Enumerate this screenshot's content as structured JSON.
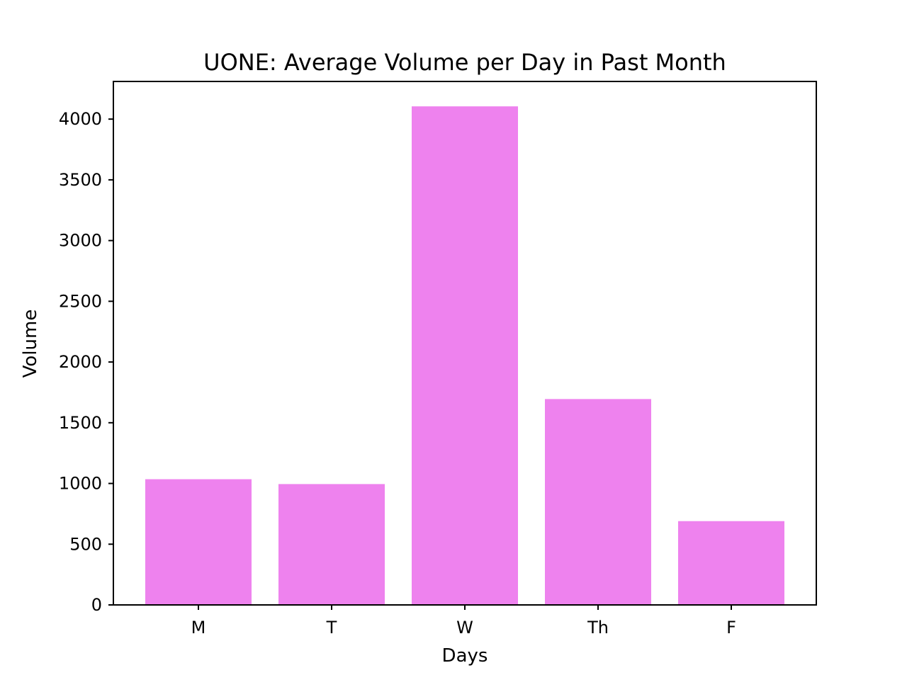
{
  "chart_data": {
    "type": "bar",
    "title": "UONE: Average Volume per Day in Past Month",
    "xlabel": "Days",
    "ylabel": "Volume",
    "categories": [
      "M",
      "T",
      "W",
      "Th",
      "F"
    ],
    "values": [
      1035,
      995,
      4105,
      1695,
      690
    ],
    "ylim": [
      0,
      4310
    ],
    "yticks": [
      0,
      500,
      1000,
      1500,
      2000,
      2500,
      3000,
      3500,
      4000
    ],
    "ytick_labels": [
      "0",
      "500",
      "1000",
      "1500",
      "2000",
      "2500",
      "3000",
      "3500",
      "4000"
    ],
    "bar_color": "#ee82ee",
    "grid": false,
    "legend": "none"
  }
}
